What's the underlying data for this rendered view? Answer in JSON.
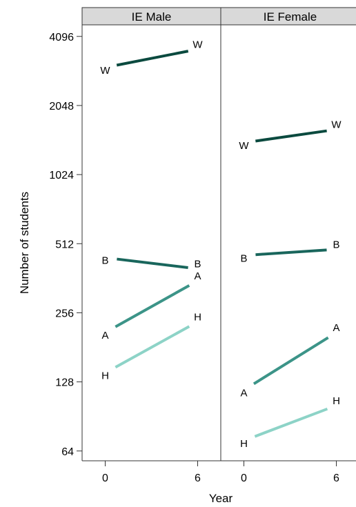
{
  "chart_data": {
    "type": "line",
    "xlabel": "Year",
    "ylabel": "Number of students",
    "y_scale": "log2",
    "ylim": [
      58,
      4600
    ],
    "xlim": [
      -1.5,
      7.5
    ],
    "x_ticks": [
      0,
      6
    ],
    "y_ticks": [
      64,
      128,
      256,
      512,
      1024,
      2048,
      4096
    ],
    "colors": {
      "W": "#0b4a3f",
      "B": "#19665c",
      "A": "#3c9488",
      "H": "#8dd3c7",
      "strip_fill": "#d9d9d9",
      "axis": "#333333"
    },
    "panels": [
      {
        "name": "IE Male",
        "series": [
          {
            "name": "W",
            "start_year": 0,
            "end_year": 6,
            "start": 3000,
            "end": 3600
          },
          {
            "name": "B",
            "start_year": 0,
            "end_year": 6,
            "start": 445,
            "end": 398
          },
          {
            "name": "A",
            "start_year": 0,
            "end_year": 6,
            "start": 210,
            "end": 353
          },
          {
            "name": "H",
            "start_year": 0,
            "end_year": 6,
            "start": 140,
            "end": 234
          }
        ]
      },
      {
        "name": "IE Female",
        "series": [
          {
            "name": "W",
            "start_year": 0,
            "end_year": 6,
            "start": 1410,
            "end": 1610
          },
          {
            "name": "B",
            "start_year": 0,
            "end_year": 6,
            "start": 455,
            "end": 484
          },
          {
            "name": "A",
            "start_year": 0,
            "end_year": 6,
            "start": 118,
            "end": 210
          },
          {
            "name": "H",
            "start_year": 0,
            "end_year": 6,
            "start": 71,
            "end": 101
          }
        ]
      }
    ]
  }
}
